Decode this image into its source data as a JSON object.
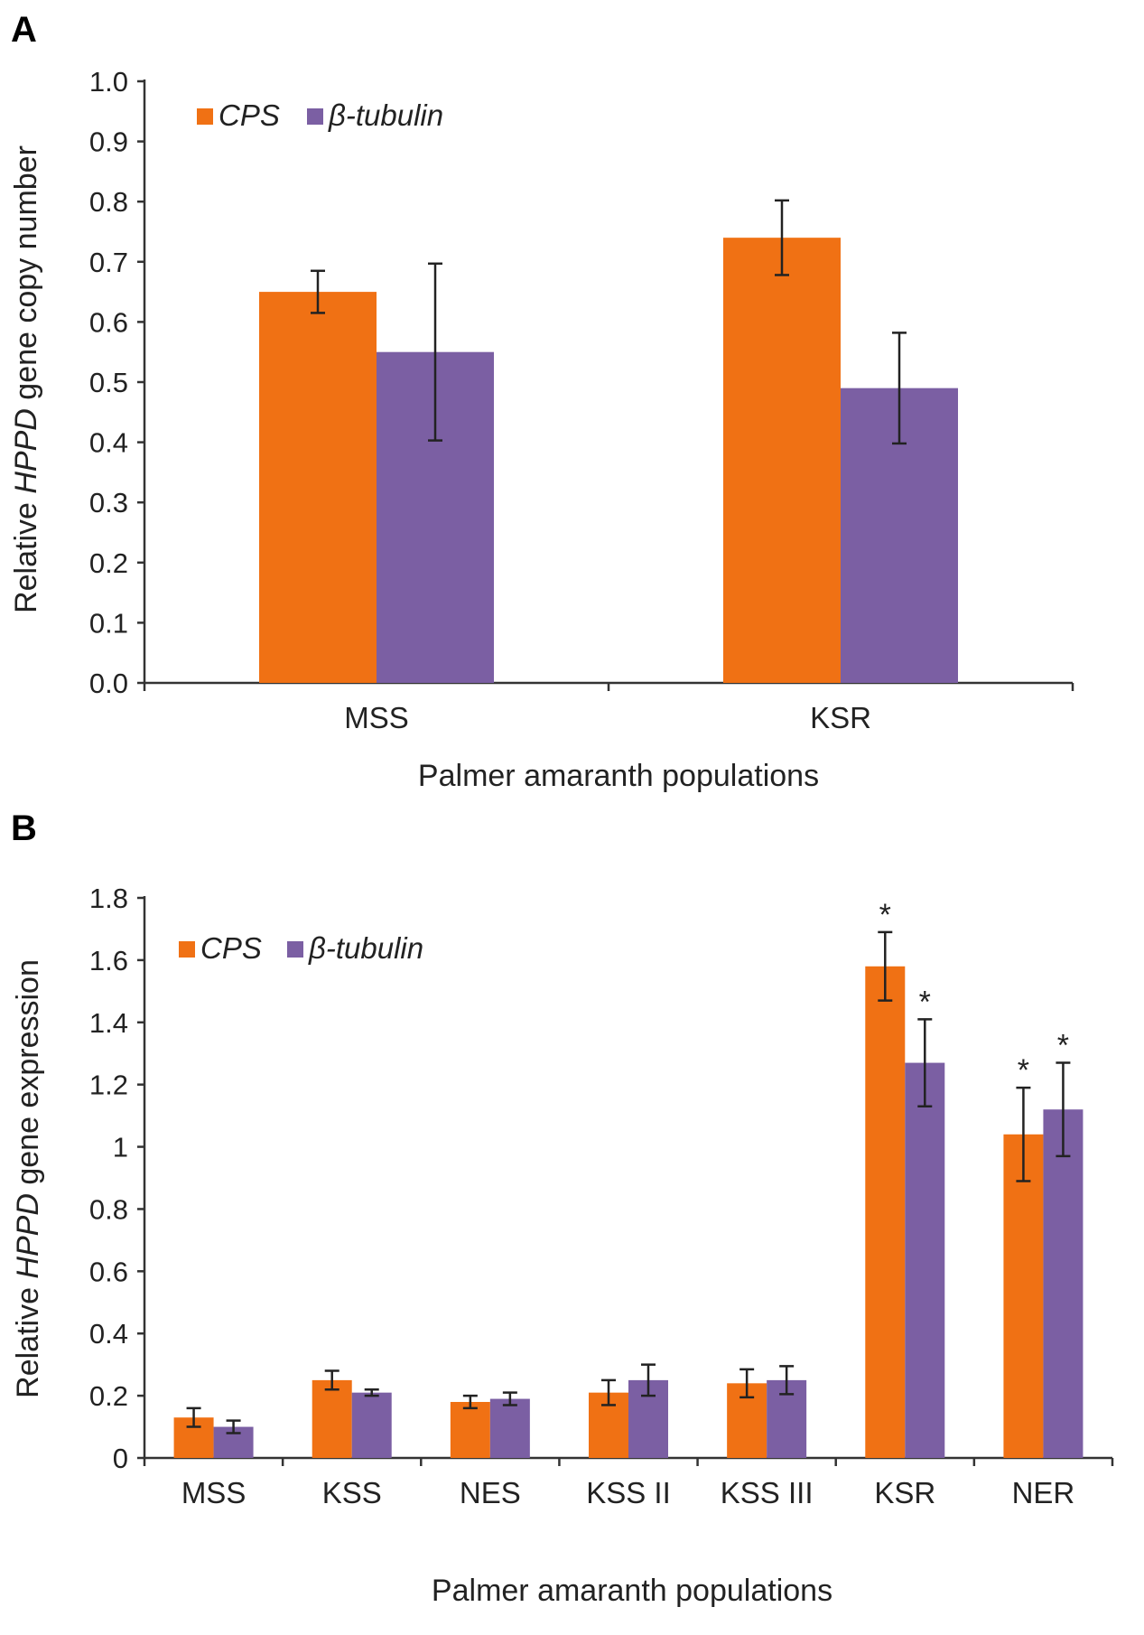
{
  "colors": {
    "cps": "#F07114",
    "tubulin": "#7B5FA3",
    "axis": "#333333"
  },
  "chart_data": [
    {
      "panel_label": "A",
      "type": "bar",
      "categories": [
        "MSS",
        "KSR"
      ],
      "series": [
        {
          "name": "CPS",
          "values": [
            0.65,
            0.74
          ],
          "errors": [
            0.035,
            0.062
          ]
        },
        {
          "name": "β-tubulin",
          "values": [
            0.55,
            0.49
          ],
          "errors": [
            0.147,
            0.092
          ]
        }
      ],
      "significance": [
        [
          "",
          ""
        ],
        [
          "",
          ""
        ]
      ],
      "yticks": [
        "0.0",
        "0.1",
        "0.2",
        "0.3",
        "0.4",
        "0.5",
        "0.6",
        "0.7",
        "0.8",
        "0.9",
        "1.0"
      ],
      "ylim": [
        0,
        1.0
      ],
      "ylabel_prefix": "Relative ",
      "ylabel_gene": "HPPD",
      "ylabel_suffix": " gene copy number",
      "xlabel": "Palmer amaranth populations",
      "legend": [
        "CPS",
        "β-tubulin"
      ],
      "legend_position": "top-left"
    },
    {
      "panel_label": "B",
      "type": "bar",
      "categories": [
        "MSS",
        "KSS",
        "NES",
        "KSS II",
        "KSS III",
        "KSR",
        "NER"
      ],
      "series": [
        {
          "name": "CPS",
          "values": [
            0.13,
            0.25,
            0.18,
            0.21,
            0.24,
            1.58,
            1.04
          ],
          "errors": [
            0.03,
            0.03,
            0.02,
            0.04,
            0.045,
            0.11,
            0.15
          ]
        },
        {
          "name": "β-tubulin",
          "values": [
            0.1,
            0.21,
            0.19,
            0.25,
            0.25,
            1.27,
            1.12
          ],
          "errors": [
            0.02,
            0.01,
            0.02,
            0.05,
            0.045,
            0.14,
            0.15
          ]
        }
      ],
      "significance": [
        [
          "",
          ""
        ],
        [
          "",
          ""
        ],
        [
          "",
          ""
        ],
        [
          "",
          ""
        ],
        [
          "",
          ""
        ],
        [
          "*",
          "*"
        ],
        [
          "*",
          "*"
        ]
      ],
      "yticks": [
        "0",
        "0.2",
        "0.4",
        "0.6",
        "0.8",
        "1",
        "1.2",
        "1.4",
        "1.6",
        "1.8"
      ],
      "ylim": [
        0,
        1.8
      ],
      "ylabel_prefix": "Relative ",
      "ylabel_gene": "HPPD",
      "ylabel_suffix": " gene expression",
      "xlabel": "Palmer amaranth populations",
      "legend": [
        "CPS",
        "β-tubulin"
      ],
      "legend_position": "top-left"
    }
  ]
}
